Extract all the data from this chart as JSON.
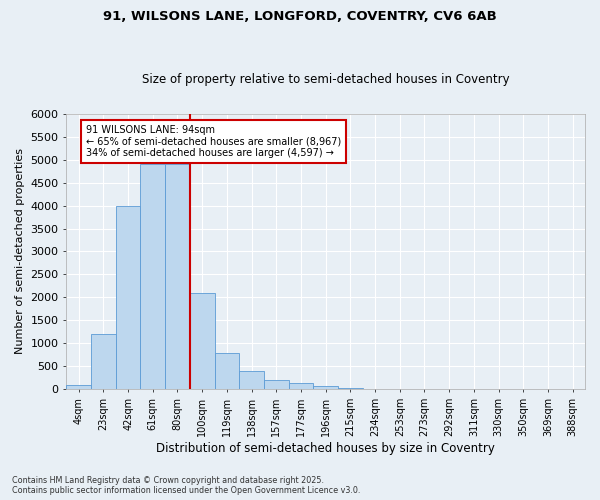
{
  "title_line1": "91, WILSONS LANE, LONGFORD, COVENTRY, CV6 6AB",
  "title_line2": "Size of property relative to semi-detached houses in Coventry",
  "xlabel": "Distribution of semi-detached houses by size in Coventry",
  "ylabel": "Number of semi-detached properties",
  "categories": [
    "4sqm",
    "23sqm",
    "42sqm",
    "61sqm",
    "80sqm",
    "100sqm",
    "119sqm",
    "138sqm",
    "157sqm",
    "177sqm",
    "196sqm",
    "215sqm",
    "234sqm",
    "253sqm",
    "273sqm",
    "292sqm",
    "311sqm",
    "330sqm",
    "350sqm",
    "369sqm",
    "388sqm"
  ],
  "values": [
    90,
    1200,
    4000,
    4900,
    4900,
    2100,
    800,
    400,
    210,
    130,
    65,
    30,
    10,
    5,
    0,
    0,
    0,
    0,
    0,
    0,
    0
  ],
  "bar_color": "#BDD7EE",
  "bar_edge_color": "#5B9BD5",
  "annotation_text_line1": "91 WILSONS LANE: 94sqm",
  "annotation_text_line2": "← 65% of semi-detached houses are smaller (8,967)",
  "annotation_text_line3": "34% of semi-detached houses are larger (4,597) →",
  "annotation_box_color": "#ffffff",
  "annotation_box_edge": "#cc0000",
  "ylim": [
    0,
    6000
  ],
  "yticks": [
    0,
    500,
    1000,
    1500,
    2000,
    2500,
    3000,
    3500,
    4000,
    4500,
    5000,
    5500,
    6000
  ],
  "background_color": "#E8EFF5",
  "footer_line1": "Contains HM Land Registry data © Crown copyright and database right 2025.",
  "footer_line2": "Contains public sector information licensed under the Open Government Licence v3.0.",
  "red_line_color": "#CC0000",
  "grid_color": "#ffffff",
  "red_line_bin": 5
}
